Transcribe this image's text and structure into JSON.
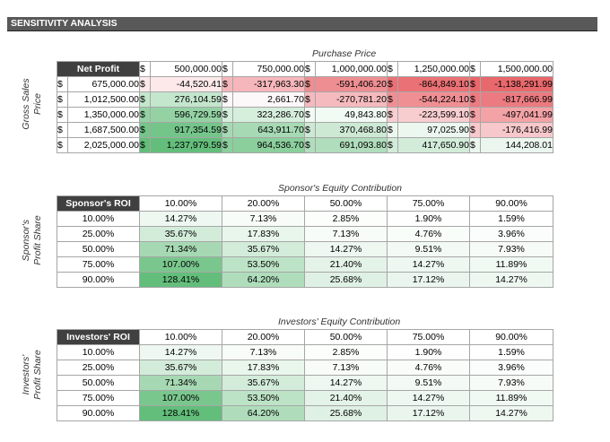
{
  "title": "SENSITIVITY ANALYSIS",
  "net_profit": {
    "top_caption": "Purchase Price",
    "side_caption_line1": "Gross Sales",
    "side_caption_line2": "Price",
    "corner": "Net Profit",
    "currency": "$",
    "columns": [
      "500,000.00",
      "750,000.00",
      "1,000,000.00",
      "1,250,000.00",
      "1,500,000.00"
    ],
    "rows": [
      {
        "label": "675,000.00",
        "values": [
          "-44,520.41",
          "-317,963.30",
          "-591,406.20",
          "-864,849.10",
          "-1,138,291.99"
        ]
      },
      {
        "label": "1,012,500.00",
        "values": [
          "276,104.59",
          "2,661.70",
          "-270,781.20",
          "-544,224.10",
          "-817,666.99"
        ]
      },
      {
        "label": "1,350,000.00",
        "values": [
          "596,729.59",
          "323,286.70",
          "49,843.80",
          "-223,599.10",
          "-497,041.99"
        ]
      },
      {
        "label": "1,687,500.00",
        "values": [
          "917,354.59",
          "643,911.70",
          "370,468.80",
          "97,025.90",
          "-176,416.99"
        ]
      },
      {
        "label": "2,025,000.00",
        "values": [
          "1,237,979.59",
          "964,536.70",
          "691,093.80",
          "417,650.90",
          "144,208.01"
        ]
      }
    ],
    "colors": [
      [
        "#fde9ea",
        "#f5b7bb",
        "#ee8e92",
        "#ea7175",
        "#e8686c"
      ],
      [
        "#c3e6cd",
        "#fcf7f8",
        "#f5babe",
        "#f08f93",
        "#eb7b80"
      ],
      [
        "#94d2a4",
        "#d6eedc",
        "#f2faf4",
        "#f8cdd0",
        "#f3a2a6"
      ],
      [
        "#74c58a",
        "#a7dab4",
        "#cde9d4",
        "#ecf7ef",
        "#f7c8cb"
      ],
      [
        "#63be7b",
        "#8bcf9c",
        "#b0ddbb",
        "#d2ecd9",
        "#ebf6ee"
      ]
    ]
  },
  "sponsor": {
    "top_caption": "Sponsor's Equity Contribution",
    "side_caption_line1": "Sponsor's",
    "side_caption_line2": "Profit Share",
    "corner": "Sponsor's ROI",
    "columns": [
      "10.00%",
      "20.00%",
      "50.00%",
      "75.00%",
      "90.00%"
    ],
    "rows": [
      {
        "label": "10.00%",
        "values": [
          "14.27%",
          "7.13%",
          "2.85%",
          "1.90%",
          "1.59%"
        ]
      },
      {
        "label": "25.00%",
        "values": [
          "35.67%",
          "17.83%",
          "7.13%",
          "4.76%",
          "3.96%"
        ]
      },
      {
        "label": "50.00%",
        "values": [
          "71.34%",
          "35.67%",
          "14.27%",
          "9.51%",
          "7.93%"
        ]
      },
      {
        "label": "75.00%",
        "values": [
          "107.00%",
          "53.50%",
          "21.40%",
          "14.27%",
          "11.89%"
        ]
      },
      {
        "label": "90.00%",
        "values": [
          "128.41%",
          "64.20%",
          "25.68%",
          "17.12%",
          "14.27%"
        ]
      }
    ],
    "colors": [
      [
        "#eef8f1",
        "#f7fcf8",
        "#fcfefc",
        "#fdfefd",
        "#fefffe"
      ],
      [
        "#d3ecda",
        "#e9f6ec",
        "#f7fcf8",
        "#f9fdfa",
        "#fafdfb"
      ],
      [
        "#a6d9b3",
        "#d3ecda",
        "#eef8f1",
        "#f3faf5",
        "#f6fbf7"
      ],
      [
        "#7ac78e",
        "#bde3c6",
        "#e4f3e8",
        "#eef8f1",
        "#f1f9f3"
      ],
      [
        "#63be7b",
        "#afddbb",
        "#dff1e4",
        "#eaf6ed",
        "#eef8f1"
      ]
    ]
  },
  "investors": {
    "top_caption": "Investors' Equity Contribution",
    "side_caption_line1": "Investors'",
    "side_caption_line2": "Profit Share",
    "corner": "Investors' ROI",
    "columns": [
      "10.00%",
      "20.00%",
      "50.00%",
      "75.00%",
      "90.00%"
    ],
    "rows": [
      {
        "label": "10.00%",
        "values": [
          "14.27%",
          "7.13%",
          "2.85%",
          "1.90%",
          "1.59%"
        ]
      },
      {
        "label": "25.00%",
        "values": [
          "35.67%",
          "17.83%",
          "7.13%",
          "4.76%",
          "3.96%"
        ]
      },
      {
        "label": "50.00%",
        "values": [
          "71.34%",
          "35.67%",
          "14.27%",
          "9.51%",
          "7.93%"
        ]
      },
      {
        "label": "75.00%",
        "values": [
          "107.00%",
          "53.50%",
          "21.40%",
          "14.27%",
          "11.89%"
        ]
      },
      {
        "label": "90.00%",
        "values": [
          "128.41%",
          "64.20%",
          "25.68%",
          "17.12%",
          "14.27%"
        ]
      }
    ],
    "colors": [
      [
        "#eef8f1",
        "#f7fcf8",
        "#fcfefc",
        "#fdfefd",
        "#fefffe"
      ],
      [
        "#d3ecda",
        "#e9f6ec",
        "#f7fcf8",
        "#f9fdfa",
        "#fafdfb"
      ],
      [
        "#a6d9b3",
        "#d3ecda",
        "#eef8f1",
        "#f3faf5",
        "#f6fbf7"
      ],
      [
        "#7ac78e",
        "#bde3c6",
        "#e4f3e8",
        "#eef8f1",
        "#f1f9f3"
      ],
      [
        "#63be7b",
        "#afddbb",
        "#dff1e4",
        "#eaf6ed",
        "#eef8f1"
      ]
    ]
  }
}
